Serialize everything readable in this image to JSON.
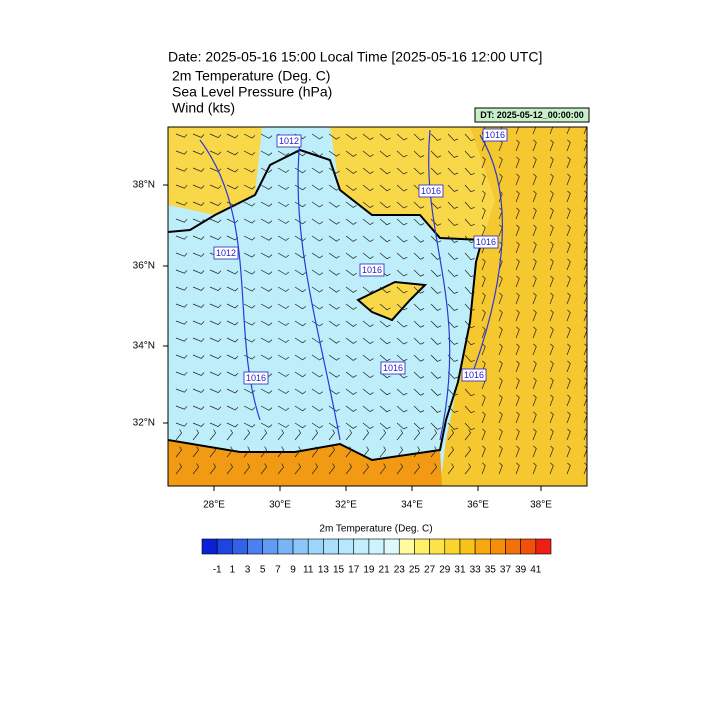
{
  "header": {
    "title": "Date: 2025-05-16  15:00 Local Time [2025-05-16  12:00 UTC]",
    "fields": [
      "2m Temperature (Deg. C)",
      "Sea Level Pressure   (hPa)",
      "Wind   (kts)"
    ],
    "stamp": "DT: 2025-05-12_00:00:00"
  },
  "map": {
    "lon_ticks": [
      "28°E",
      "30°E",
      "32°E",
      "34°E",
      "36°E",
      "38°E"
    ],
    "lat_ticks": [
      "38°N",
      "36°N",
      "34°N",
      "32°N"
    ],
    "contour_labels": [
      "1012",
      "1016",
      "1016",
      "1016",
      "1016",
      "1012",
      "1016",
      "1016",
      "1016"
    ]
  },
  "colorbar": {
    "title": "2m Temperature (Deg. C)",
    "labels": [
      "-1",
      "1",
      "3",
      "5",
      "7",
      "9",
      "11",
      "13",
      "15",
      "17",
      "19",
      "21",
      "23",
      "25",
      "27",
      "29",
      "31",
      "33",
      "35",
      "37",
      "39",
      "41"
    ],
    "colors": [
      "#0a1fd6",
      "#1f45e0",
      "#3362e8",
      "#4a80ef",
      "#5f9cf4",
      "#78b4f8",
      "#8cc7fa",
      "#9dd6fc",
      "#aadffc",
      "#b6e8fd",
      "#c1effe",
      "#cbf4fe",
      "#dcfafc",
      "#fffb9e",
      "#fff06a",
      "#fde34a",
      "#fbd52e",
      "#f8c219",
      "#f7a90e",
      "#f58f0a",
      "#f3710a",
      "#f1500d",
      "#ee2016"
    ]
  }
}
